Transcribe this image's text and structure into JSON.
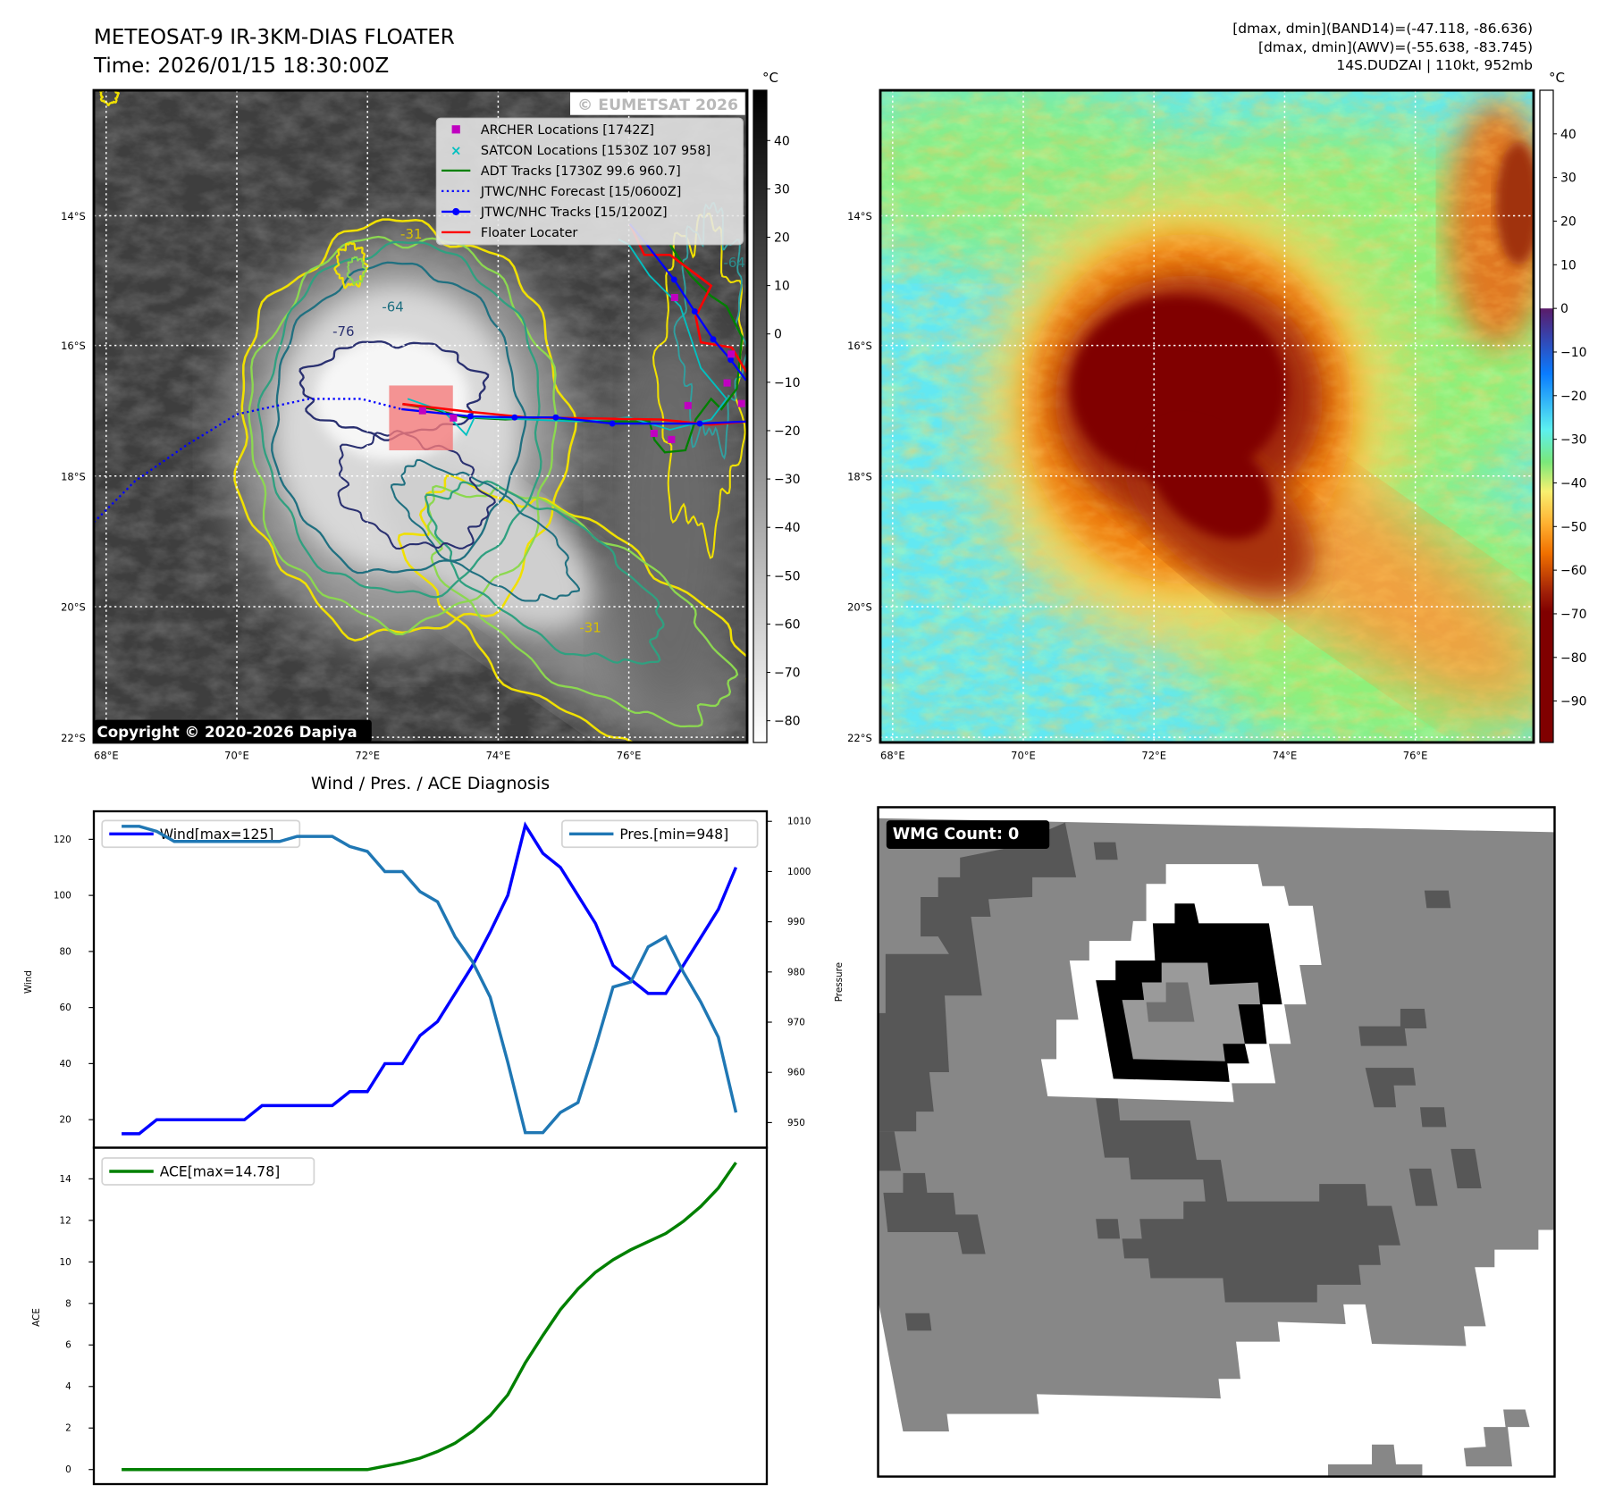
{
  "header": {
    "title_line1": "METEOSAT-9 IR-3KM-DIAS FLOATER",
    "title_line2": "Time: 2026/01/15 18:30:00Z",
    "stats_line1": "[dmax, dmin](BAND14)=(-47.118, -86.636)",
    "stats_line2": "[dmax, dmin](AWV)=(-55.638, -83.745)",
    "stats_line3": "14S.DUDZAI | 110kt, 952mb"
  },
  "map": {
    "lat_labels": [
      "14°S",
      "16°S",
      "18°S",
      "20°S",
      "22°S"
    ],
    "lon_labels": [
      "68°E",
      "70°E",
      "72°E",
      "74°E",
      "76°E"
    ],
    "copyright": "Copyright © 2020-2026 Dapiya",
    "watermark": "© EUMETSAT 2026",
    "contour_labels": [
      "-31",
      "-64",
      "-76",
      "-64",
      "-31"
    ],
    "legend": [
      {
        "label": "ARCHER Locations [1742Z]",
        "color": "#c000c0",
        "marker": "square"
      },
      {
        "label": "SATCON Locations [1530Z 107 958]",
        "color": "#00c0c0",
        "marker": "x"
      },
      {
        "label": "ADT Tracks [1730Z 99.6 960.7]",
        "color": "#008000",
        "marker": "line"
      },
      {
        "label": "JTWC/NHC Forecast [15/0600Z]",
        "color": "#0000ff",
        "marker": "dotted"
      },
      {
        "label": "JTWC/NHC Tracks [15/1200Z]",
        "color": "#0000ff",
        "marker": "line-dot"
      },
      {
        "label": "Floater Locater",
        "color": "#ff0000",
        "marker": "line"
      }
    ]
  },
  "colorbar_ir": {
    "unit": "°C",
    "ticks": [
      "40",
      "30",
      "20",
      "10",
      "0",
      "−10",
      "−20",
      "−30",
      "−40",
      "−50",
      "−60",
      "−70",
      "−80"
    ],
    "values": [
      40,
      30,
      20,
      10,
      0,
      -10,
      -20,
      -30,
      -40,
      -50,
      -60,
      -70,
      -80
    ],
    "range": [
      50.4,
      -84.5
    ]
  },
  "colorbar_awv": {
    "unit": "°C",
    "ticks": [
      "40",
      "30",
      "20",
      "10",
      "0",
      "−10",
      "−20",
      "−30",
      "−40",
      "−50",
      "−60",
      "−70",
      "−80",
      "−90"
    ],
    "values": [
      40,
      30,
      20,
      10,
      0,
      -10,
      -20,
      -30,
      -40,
      -50,
      -60,
      -70,
      -80,
      -90
    ],
    "range": [
      50,
      -99.5
    ]
  },
  "diagnosis_title": "Wind / Pres. / ACE Diagnosis",
  "wmg": {
    "count_label": "WMG Count: 0"
  },
  "chart_data": [
    {
      "type": "line",
      "title": "Wind / Pres. / ACE Diagnosis",
      "ylabel": "Wind",
      "ylabel_right": "Pressure",
      "ylim": [
        10,
        130
      ],
      "ylim_right": [
        945,
        1012
      ],
      "yticks": [
        20,
        40,
        60,
        80,
        100,
        120
      ],
      "yticks_right": [
        950,
        960,
        970,
        980,
        990,
        1000,
        1010
      ],
      "series": [
        {
          "name": "Wind[max=125]",
          "axis": "left",
          "color": "#0000ff",
          "legend": "top-left",
          "values": [
            15,
            15,
            20,
            20,
            20,
            20,
            20,
            20,
            25,
            25,
            25,
            25,
            25,
            30,
            30,
            40,
            40,
            50,
            55,
            65,
            75,
            87,
            100,
            125,
            115,
            110,
            100,
            90,
            75,
            70,
            65,
            65,
            75,
            85,
            95,
            110
          ]
        },
        {
          "name": "Pres.[min=948]",
          "axis": "right",
          "color": "#1f77b4",
          "legend": "top-right",
          "values": [
            1009,
            1009,
            1008,
            1006,
            1006,
            1006,
            1006,
            1006,
            1006,
            1006,
            1007,
            1007,
            1007,
            1005,
            1004,
            1000,
            1000,
            996,
            994,
            987,
            982,
            975,
            962,
            948,
            948,
            952,
            954,
            965,
            977,
            978,
            985,
            987,
            980,
            974,
            967,
            952
          ]
        }
      ]
    },
    {
      "type": "line",
      "ylabel": "ACE",
      "ylim": [
        -0.7,
        15.5
      ],
      "yticks": [
        0,
        2,
        4,
        6,
        8,
        10,
        12,
        14
      ],
      "series": [
        {
          "name": "ACE[max=14.78]",
          "color": "#008000",
          "legend": "top-left",
          "values": [
            0,
            0,
            0,
            0,
            0,
            0,
            0,
            0,
            0,
            0,
            0,
            0,
            0,
            0,
            0,
            0.16,
            0.33,
            0.55,
            0.87,
            1.27,
            1.85,
            2.6,
            3.6,
            5.14,
            6.46,
            7.7,
            8.7,
            9.5,
            10.1,
            10.58,
            10.97,
            11.37,
            11.95,
            12.67,
            13.56,
            14.78
          ]
        }
      ]
    }
  ]
}
